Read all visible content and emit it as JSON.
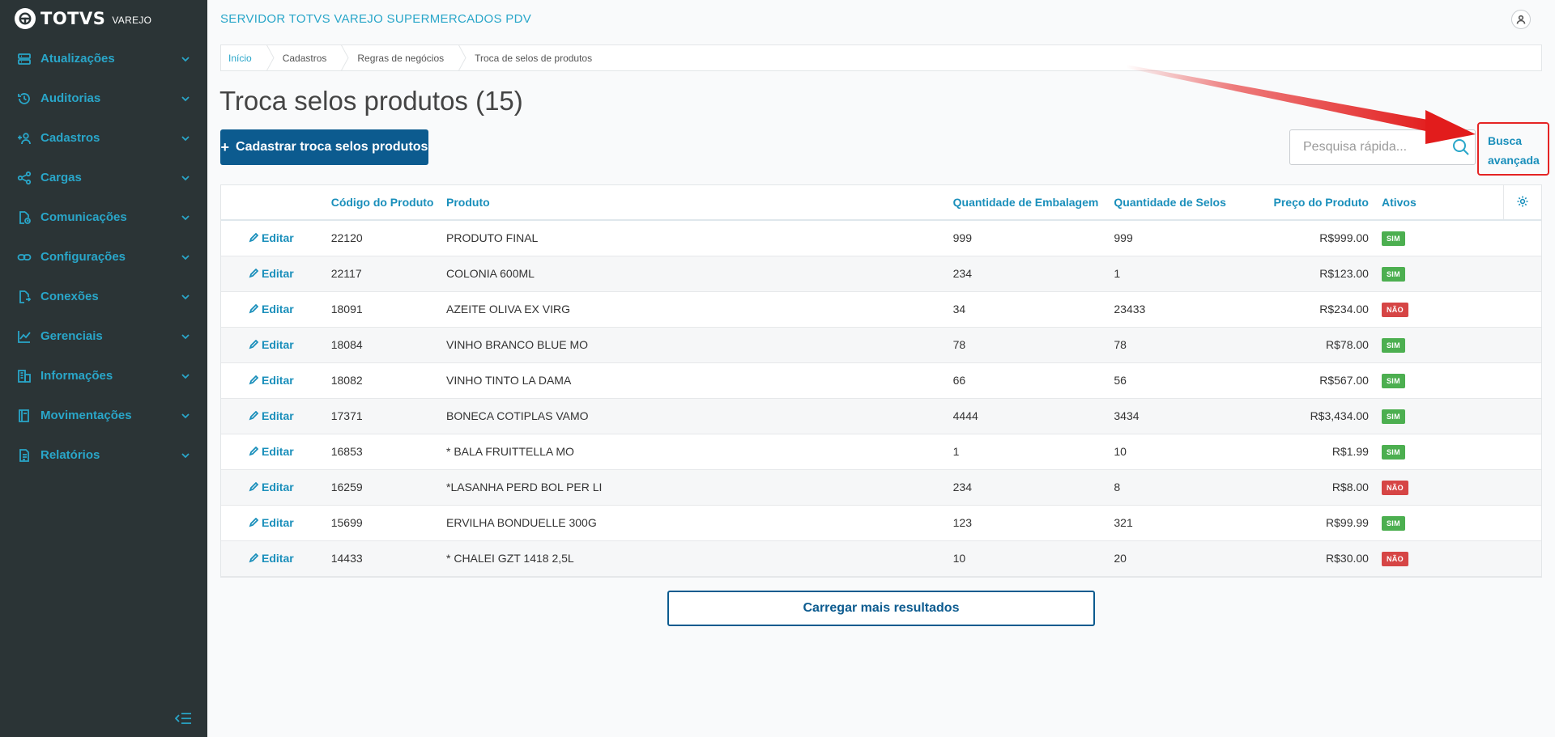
{
  "brand": {
    "name": "TOTVS",
    "sub": "VAREJO"
  },
  "sidebar": {
    "items": [
      {
        "label": "Atualizações",
        "icon": "server-icon"
      },
      {
        "label": "Auditorias",
        "icon": "history-icon"
      },
      {
        "label": "Cadastros",
        "icon": "add-user-icon"
      },
      {
        "label": "Cargas",
        "icon": "share-icon"
      },
      {
        "label": "Comunicações",
        "icon": "file-sync-icon"
      },
      {
        "label": "Configurações",
        "icon": "link-icon"
      },
      {
        "label": "Conexões",
        "icon": "file-connect-icon"
      },
      {
        "label": "Gerenciais",
        "icon": "chart-icon"
      },
      {
        "label": "Informações",
        "icon": "building-icon"
      },
      {
        "label": "Movimentações",
        "icon": "book-icon"
      },
      {
        "label": "Relatórios",
        "icon": "document-icon"
      }
    ]
  },
  "header": {
    "server_title": "SERVIDOR TOTVS VAREJO SUPERMERCADOS PDV"
  },
  "breadcrumb": [
    "Início",
    "Cadastros",
    "Regras de negócios",
    "Troca de selos de produtos"
  ],
  "page": {
    "title": "Troca selos produtos (15)",
    "create_button": "Cadastrar troca selos produtos",
    "search_placeholder": "Pesquisa rápida...",
    "advanced_search_line1": "Busca",
    "advanced_search_line2": "avançada",
    "load_more": "Carregar mais resultados"
  },
  "table": {
    "columns": [
      "Código do Produto",
      "Produto",
      "Quantidade de Embalagem",
      "Quantidade de Selos",
      "Preço do Produto",
      "Ativos"
    ],
    "edit_label": "Editar",
    "rows": [
      {
        "code": "22120",
        "product": "PRODUTO FINAL",
        "pack_qty": "999",
        "seal_qty": "999",
        "price": "R$999.00",
        "active": "SIM"
      },
      {
        "code": "22117",
        "product": "COLONIA 600ML",
        "pack_qty": "234",
        "seal_qty": "1",
        "price": "R$123.00",
        "active": "SIM"
      },
      {
        "code": "18091",
        "product": "AZEITE OLIVA EX VIRG",
        "pack_qty": "34",
        "seal_qty": "23433",
        "price": "R$234.00",
        "active": "NÃO"
      },
      {
        "code": "18084",
        "product": "VINHO BRANCO BLUE MO",
        "pack_qty": "78",
        "seal_qty": "78",
        "price": "R$78.00",
        "active": "SIM"
      },
      {
        "code": "18082",
        "product": "VINHO TINTO LA DAMA",
        "pack_qty": "66",
        "seal_qty": "56",
        "price": "R$567.00",
        "active": "SIM"
      },
      {
        "code": "17371",
        "product": "BONECA COTIPLAS VAMO",
        "pack_qty": "4444",
        "seal_qty": "3434",
        "price": "R$3,434.00",
        "active": "SIM"
      },
      {
        "code": "16853",
        "product": "* BALA FRUITTELLA MO",
        "pack_qty": "1",
        "seal_qty": "10",
        "price": "R$1.99",
        "active": "SIM"
      },
      {
        "code": "16259",
        "product": "*LASANHA PERD BOL PER LI",
        "pack_qty": "234",
        "seal_qty": "8",
        "price": "R$8.00",
        "active": "NÃO"
      },
      {
        "code": "15699",
        "product": "ERVILHA BONDUELLE 300G",
        "pack_qty": "123",
        "seal_qty": "321",
        "price": "R$99.99",
        "active": "SIM"
      },
      {
        "code": "14433",
        "product": "* CHALEI GZT 1418 2,5L",
        "pack_qty": "10",
        "seal_qty": "20",
        "price": "R$30.00",
        "active": "NÃO"
      }
    ]
  },
  "colors": {
    "sidebar_bg": "#2b3436",
    "accent": "#29a6c9",
    "primary": "#0c5b8f",
    "active_badge": "#4caf50",
    "inactive_badge": "#d64545",
    "highlight": "#e52424"
  }
}
